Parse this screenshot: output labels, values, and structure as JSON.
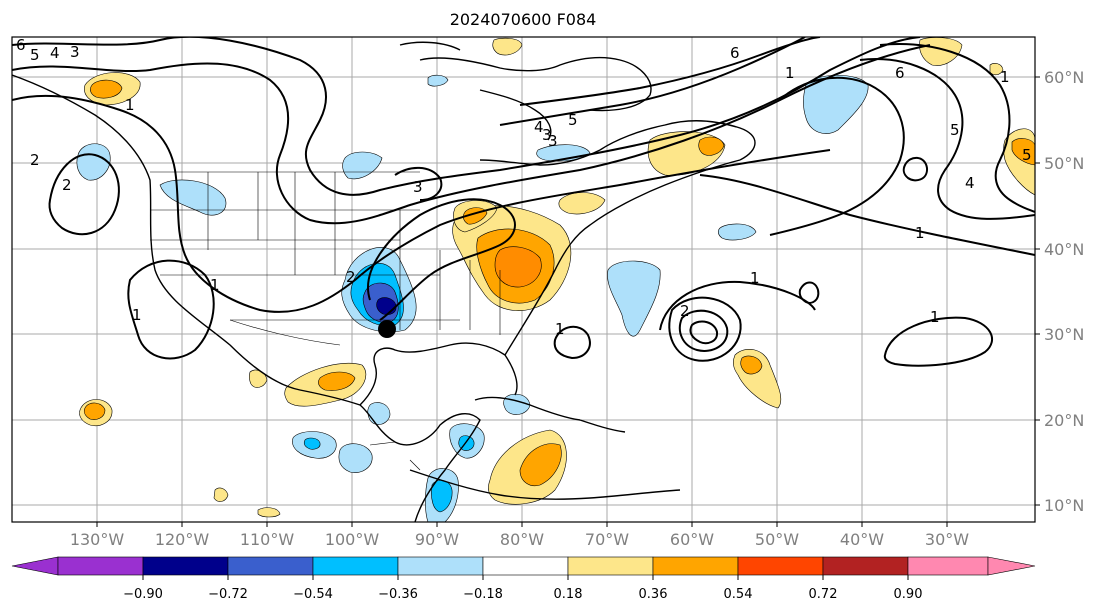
{
  "title": "2024070600 F084",
  "lat_labels": [
    "60°N",
    "50°N",
    "40°N",
    "30°N",
    "20°N",
    "10°N"
  ],
  "lon_labels": [
    "130°W",
    "120°W",
    "110°W",
    "100°W",
    "90°W",
    "80°W",
    "70°W",
    "60°W",
    "50°W",
    "40°W",
    "30°W"
  ],
  "colorbar": {
    "ticks": [
      "−0.90",
      "−0.72",
      "−0.54",
      "−0.36",
      "−0.18",
      "0.18",
      "0.36",
      "0.54",
      "0.72",
      "0.90"
    ],
    "colors": [
      "#9a30d0",
      "#00008b",
      "#3a5fcd",
      "#00bfff",
      "#aee0fa",
      "#ffffff",
      "#fde68a",
      "#ffa500",
      "#ff4500",
      "#b22222",
      "#ff88b0",
      "#ff88b0"
    ]
  },
  "contour_labels": [
    "6",
    "5",
    "4",
    "3",
    "1",
    "2",
    "2",
    "1",
    "3",
    "5",
    "4",
    "3",
    "6",
    "1",
    "6",
    "5",
    "4",
    "5",
    "3",
    "2",
    "1",
    "1",
    "2",
    "1",
    "1",
    "1",
    "1"
  ],
  "storm_marker": "storm-center-marker"
}
